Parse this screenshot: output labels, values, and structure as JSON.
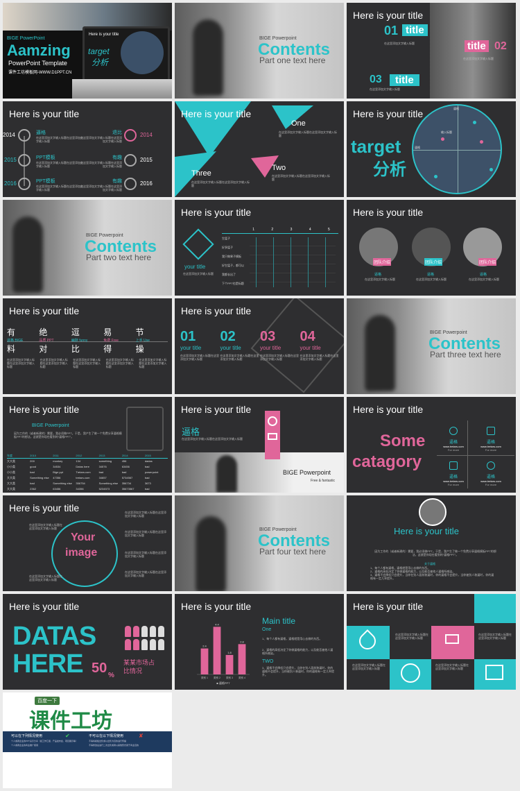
{
  "colors": {
    "teal": "#2cc3c9",
    "pink": "#e0669a",
    "dark": "#2e2e30"
  },
  "s1": {
    "brand": "BIGE PowerPoint",
    "big": "Aamzing",
    "sub": "PowerPoint Template",
    "site": "课件工坊模板网-WWW.D1PPT.CN",
    "screen_title": "Here is your title",
    "target1": "target",
    "target2": "分析"
  },
  "s2": {
    "brand": "BIGE Powerpoint",
    "big": "Contents",
    "sub": "Part one text here"
  },
  "s3": {
    "title": "Here is your title",
    "n1": "01",
    "t1": "title",
    "t2": "title",
    "n2": "02",
    "n3": "03",
    "t3": "title",
    "body": "在这里添加文字输入标题"
  },
  "s4": {
    "title": "Here is your title",
    "left": [
      {
        "year": "2014",
        "label": "逼格"
      },
      {
        "year": "2015",
        "label": "PPT模板"
      },
      {
        "year": "2016",
        "label": "PPT模板"
      }
    ],
    "right": [
      {
        "year": "2014",
        "label": "退比"
      },
      {
        "year": "2015",
        "label": "有趣"
      },
      {
        "year": "2016",
        "label": "有趣"
      }
    ],
    "body": "在这里添加文字输入标题在这里添加文字输入标题"
  },
  "s5": {
    "title": "Here is your title",
    "one": "One",
    "two": "Two",
    "three": "Three",
    "body": "在这里添加文字输入标题在这里添加文字输入标题"
  },
  "s6": {
    "title": "Here is your title",
    "t1": "target",
    "t2": "分析",
    "lbl": "输入标题",
    "axis": "逼格"
  },
  "s7": {
    "brand": "BIGE Powerpoint",
    "big": "Contents",
    "sub": "Part two text here"
  },
  "s8": {
    "title": "Here is your title",
    "your_title": "your title",
    "body": "在这里添加文字输入标题",
    "cols": [
      "1",
      "2",
      "3",
      "4",
      "5"
    ],
    "rows": [
      "生猛子",
      "好多猛子",
      "我只做果子模板",
      "好生猛子，都可以",
      "我都长出了",
      "下个PPT也是标题"
    ]
  },
  "s9": {
    "title": "Here is your title",
    "tag": "团队介绍",
    "name": "逼格",
    "body": "在这里添加文字输入标题"
  },
  "s10": {
    "title": "Here is your title",
    "items": [
      {
        "big": "有",
        "small": "逼格 BIGE",
        "alt": "料"
      },
      {
        "big": "绝",
        "small": "品质 PPT",
        "alt": "对"
      },
      {
        "big": "逗",
        "small": "幽默 funny",
        "alt": "比"
      },
      {
        "big": "易",
        "small": "免费 Free",
        "alt": "得"
      },
      {
        "big": "节",
        "small": "上手 Use",
        "alt": "操"
      }
    ],
    "body": "在这里添加文字输入标题在这里添加文字输入标题"
  },
  "s11": {
    "title": "Here is your title",
    "nums": [
      "01",
      "02",
      "03",
      "04"
    ],
    "label": "your title",
    "body": "在这里添加文字输入标题在这里添加文字输入标题"
  },
  "s12": {
    "brand": "BIGE Powerpoint",
    "big": "Contents",
    "sub": "Part three text here"
  },
  "s13": {
    "title": "Here is your title",
    "brand": "BIGE Powerpoint",
    "para": "因为工作的（或者新建的）需要，我必须做PPT。于是，我产生了做一个免费分享逼格模板PPT的想法，这就是你现在看到的“逼格PPT”。",
    "head": [
      "年度",
      "2010",
      "2011",
      "2012",
      "2013",
      "2014",
      "2015"
    ],
    "rows": [
      [
        "大大类",
        "200",
        "monkey",
        "134",
        "something",
        "456",
        "dadas"
      ],
      [
        "小小类",
        "good",
        "34534",
        "Datas here",
        "34576",
        "63456",
        "bad"
      ],
      [
        "小小类",
        "bad",
        "Bige ppt",
        "Tretars.com",
        "bad",
        "bad",
        "powerpoint"
      ],
      [
        "大大类",
        "Something else",
        "47356",
        "tretars.com",
        "34657",
        "5734567",
        "bad"
      ],
      [
        "大大类",
        "bad",
        "Something else",
        "356754",
        "Something else",
        "356734",
        "3673"
      ],
      [
        "大大类",
        "2362",
        "63456",
        "34356",
        "5234573",
        "35673567",
        "bad"
      ]
    ]
  },
  "s14": {
    "title": "Here is your title",
    "head": "逼格",
    "body": "在这里添加文字输入标题在这里添加文字输入标题",
    "brand": "BIGE Powerpoint",
    "tag": "Free & fantastic"
  },
  "s15": {
    "title": "Here is your title",
    "some": "Some",
    "cat": "catagory",
    "label": "逼格",
    "site": "www.tretars.com",
    "more": "For more"
  },
  "s16": {
    "title": "Here is your title",
    "your": "Your",
    "image": "image",
    "body": "在这里添加文字输入标题在这里添加文字输入标题"
  },
  "s17": {
    "brand": "BIGE Powerpoint",
    "big": "Contents",
    "sub": "Part four text here"
  },
  "s18": {
    "title": "Here is your title",
    "para": "因为工作的（或者新建的）需要，我必须做PPT。于是，我产生了做一个免费分享逼格模板PPT的想法，这就是你现在看到的“逼格PPT”。",
    "sub": "关于逼格",
    "list": "1、每个人都有逼格，逼格就是用心去做的东西。\n2、逼格的高低决定了你做逼格的能力，以及能否被他人逼格所感染。\n3、逼格不会降低只会提升，当你在别人面前装逼时，你的逼格不会提升，当你被别人装逼时，你的逼格有一定几率提升。"
  },
  "s19": {
    "title": "Here is your title",
    "datas": "DATAS",
    "here": "HERE",
    "pct": "50",
    "pct_sign": "%",
    "market1": "某某市场占",
    "market2": "比情况"
  },
  "s20": {
    "title": "Here is your title",
    "main": "Main title",
    "one": "One",
    "two": "TWO",
    "legend": "逼格PPT",
    "list1": "1、每个人都有逼格，逼格就是用心去做的东西。",
    "list2": "2、逼格的高低决定了你做逼格的能力，以及能否被他人逼格所感染。",
    "list3": "3、逼格不会降低只会提升，当你在别人面前装逼时，你的逼格不会提升，当你被别人装逼时，你的逼格有一定几率提升。"
  },
  "s21": {
    "title": "Here is your title",
    "body": "在这里添加文字输入标题在这里添加文字输入标题"
  },
  "s22": {
    "baidu": "百度一下",
    "logo": "课件工坊",
    "h1": "可以在下列情况使用",
    "h2": "不可以在以下情况使用",
    "t1": "个人或者企业的PPT演示分享（如工作汇报、产品发布会、项目展示等）",
    "t2": "个人或者企业的商业推广使用",
    "t3": "不得将模板出售或以出售为目的进行传播",
    "t4": "不得修改后进行二次出售或者以其他形式用于商业目的"
  },
  "chart_data": {
    "type": "bar",
    "categories": [
      "类别 1",
      "类别 2",
      "类别 3",
      "类别 4"
    ],
    "values": [
      2.4,
      4.4,
      1.8,
      2.8
    ],
    "ylim": [
      0,
      5
    ],
    "series_name": "逼格PPT"
  }
}
